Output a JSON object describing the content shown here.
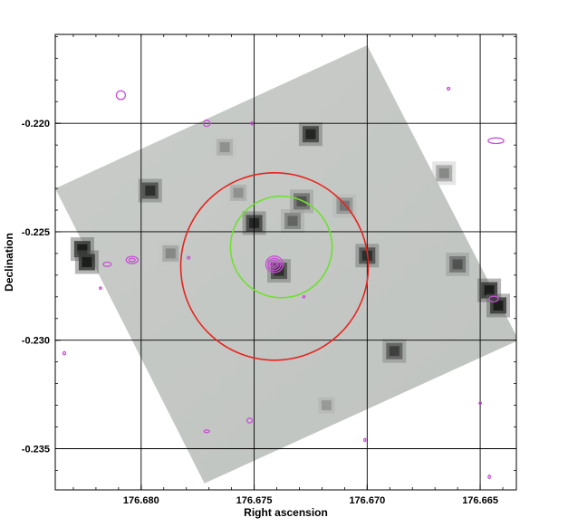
{
  "chart_data": {
    "type": "scatter",
    "xlabel": "Right ascension",
    "ylabel": "Declination",
    "x_axis_reversed": true,
    "xlim": [
      176.6838,
      176.6634
    ],
    "ylim": [
      -0.2369,
      -0.2159
    ],
    "x_ticks": [
      176.68,
      176.675,
      176.67,
      176.665
    ],
    "x_tick_labels": [
      "176.680",
      "176.675",
      "176.670",
      "176.665"
    ],
    "y_ticks": [
      -0.22,
      -0.225,
      -0.23,
      -0.235
    ],
    "y_tick_labels": [
      "-0.220",
      "-0.225",
      "-0.230",
      "-0.235"
    ],
    "grid": true,
    "image_footprint_corners": [
      {
        "ra": 176.6838,
        "dec": -0.223
      },
      {
        "ra": 176.67,
        "dec": -0.2164
      },
      {
        "ra": 176.6633,
        "dec": -0.23
      },
      {
        "ra": 176.6772,
        "dec": -0.2366
      }
    ],
    "sources": [
      {
        "ra": 176.6796,
        "dec": -0.2231,
        "value": 0.9
      },
      {
        "ra": 176.6826,
        "dec": -0.2258,
        "value": 1.0
      },
      {
        "ra": 176.6824,
        "dec": -0.2264,
        "value": 1.0
      },
      {
        "ra": 176.675,
        "dec": -0.2246,
        "value": 0.95
      },
      {
        "ra": 176.6733,
        "dec": -0.2245,
        "value": 0.6
      },
      {
        "ra": 176.6729,
        "dec": -0.2236,
        "value": 0.7
      },
      {
        "ra": 176.6739,
        "dec": -0.2268,
        "value": 0.9
      },
      {
        "ra": 176.6725,
        "dec": -0.2205,
        "value": 0.95
      },
      {
        "ra": 176.67,
        "dec": -0.2261,
        "value": 0.9
      },
      {
        "ra": 176.671,
        "dec": -0.2238,
        "value": 0.5
      },
      {
        "ra": 176.6666,
        "dec": -0.2223,
        "value": 0.4
      },
      {
        "ra": 176.6787,
        "dec": -0.226,
        "value": 0.4
      },
      {
        "ra": 176.6763,
        "dec": -0.2211,
        "value": 0.35
      },
      {
        "ra": 176.6688,
        "dec": -0.2305,
        "value": 0.8
      },
      {
        "ra": 176.6646,
        "dec": -0.2277,
        "value": 1.0
      },
      {
        "ra": 176.6642,
        "dec": -0.2284,
        "value": 1.0
      },
      {
        "ra": 176.666,
        "dec": -0.2265,
        "value": 0.7
      },
      {
        "ra": 176.6718,
        "dec": -0.233,
        "value": 0.3
      },
      {
        "ra": 176.6757,
        "dec": -0.2232,
        "value": 0.35
      }
    ],
    "circles": [
      {
        "name": "red-circle",
        "ra": 176.6741,
        "dec": -0.2266,
        "radius_ra": 0.00415,
        "color": "#e8231d"
      },
      {
        "name": "green-circle",
        "ra": 176.6738,
        "dec": -0.2257,
        "radius_ra": 0.00225,
        "color": "#6fe030"
      }
    ],
    "contours": [
      {
        "ra": 176.6809,
        "dec": -0.2187,
        "w": 0.0004,
        "h": 0.0004
      },
      {
        "ra": 176.6771,
        "dec": -0.22,
        "w": 0.0003,
        "h": 0.00028
      },
      {
        "ra": 176.6751,
        "dec": -0.22,
        "w": 0.0001,
        "h": 0.00014
      },
      {
        "ra": 176.6664,
        "dec": -0.2184,
        "w": 0.00012,
        "h": 0.00012
      },
      {
        "ra": 176.6643,
        "dec": -0.2208,
        "w": 0.0007,
        "h": 0.00026
      },
      {
        "ra": 176.6815,
        "dec": -0.2265,
        "w": 0.00035,
        "h": 0.0002
      },
      {
        "ra": 176.6804,
        "dec": -0.2263,
        "w": 0.00052,
        "h": 0.00033
      },
      {
        "ra": 176.6804,
        "dec": -0.2263,
        "w": 0.00028,
        "h": 0.00015
      },
      {
        "ra": 176.6779,
        "dec": -0.2262,
        "w": 0.00012,
        "h": 0.00012
      },
      {
        "ra": 176.6818,
        "dec": -0.2276,
        "w": 6e-05,
        "h": 6e-05
      },
      {
        "ra": 176.6741,
        "dec": -0.2265,
        "w": 0.00076,
        "h": 0.00076
      },
      {
        "ra": 176.6741,
        "dec": -0.2265,
        "w": 0.00056,
        "h": 0.00056
      },
      {
        "ra": 176.6741,
        "dec": -0.2265,
        "w": 0.00036,
        "h": 0.00036
      },
      {
        "ra": 176.6741,
        "dec": -0.2265,
        "w": 0.0002,
        "h": 0.0002
      },
      {
        "ra": 176.6728,
        "dec": -0.228,
        "w": 0.0001,
        "h": 0.0001
      },
      {
        "ra": 176.6644,
        "dec": -0.2281,
        "w": 0.0004,
        "h": 0.00026
      },
      {
        "ra": 176.6834,
        "dec": -0.2306,
        "w": 0.00012,
        "h": 0.00014
      },
      {
        "ra": 176.6752,
        "dec": -0.2337,
        "w": 0.00024,
        "h": 0.00022
      },
      {
        "ra": 176.6771,
        "dec": -0.2342,
        "w": 0.00024,
        "h": 0.00012
      },
      {
        "ra": 176.6701,
        "dec": -0.2346,
        "w": 0.0001,
        "h": 0.00014
      },
      {
        "ra": 176.665,
        "dec": -0.2329,
        "w": 8e-05,
        "h": 8e-05
      },
      {
        "ra": 176.6646,
        "dec": -0.2363,
        "w": 8e-05,
        "h": 0.00016
      }
    ]
  }
}
